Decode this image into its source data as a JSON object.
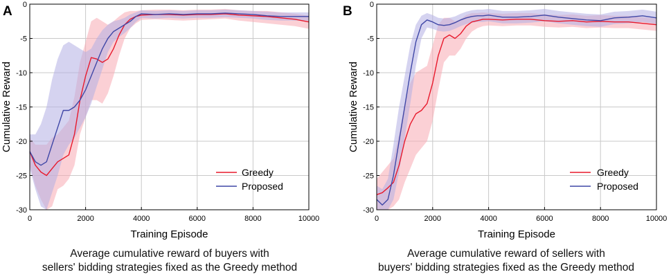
{
  "colors": {
    "greedy": "#e8192c",
    "greedy_band": "#f7a9b2",
    "proposed": "#3f47a6",
    "proposed_band": "#b3aee3",
    "grid": "#c9c9c9"
  },
  "chart_data": [
    {
      "panel": "A",
      "type": "line",
      "xlabel": "Training Episode",
      "ylabel": "Cumulative Reward",
      "xlim": [
        0,
        10000
      ],
      "ylim": [
        -30,
        0
      ],
      "xticks": [
        0,
        2000,
        4000,
        6000,
        8000,
        10000
      ],
      "yticks": [
        -30,
        -25,
        -20,
        -15,
        -10,
        -5,
        0
      ],
      "grid": true,
      "legend_position": "lower-right",
      "caption": [
        "Average cumulative reward of buyers with",
        "sellers' bidding strategies fixed as the Greedy method"
      ],
      "series": [
        {
          "name": "Greedy",
          "x": [
            0,
            200,
            400,
            600,
            800,
            1000,
            1200,
            1400,
            1600,
            1800,
            2000,
            2200,
            2400,
            2600,
            2800,
            3000,
            3200,
            3400,
            3600,
            3800,
            4000,
            4500,
            5000,
            5500,
            6000,
            6500,
            7000,
            7500,
            8000,
            8500,
            9000,
            9500,
            10000
          ],
          "mean": [
            -21.5,
            -23.5,
            -24.5,
            -25.0,
            -24.0,
            -23.0,
            -22.5,
            -22.0,
            -19.0,
            -14.0,
            -10.5,
            -7.8,
            -8.0,
            -8.5,
            -8.0,
            -6.5,
            -4.5,
            -3.0,
            -2.2,
            -1.8,
            -1.6,
            -1.5,
            -1.5,
            -1.6,
            -1.5,
            -1.5,
            -1.4,
            -1.6,
            -1.7,
            -1.8,
            -2.0,
            -2.2,
            -2.6
          ],
          "lower": [
            -23.5,
            -26.5,
            -28.5,
            -30.0,
            -29.5,
            -27.0,
            -26.5,
            -25.5,
            -23.5,
            -19.0,
            -16.5,
            -14.0,
            -14.0,
            -14.5,
            -13.0,
            -10.5,
            -7.5,
            -5.0,
            -3.5,
            -2.8,
            -2.3,
            -2.2,
            -2.3,
            -2.4,
            -2.3,
            -2.2,
            -2.1,
            -2.4,
            -2.6,
            -2.8,
            -3.0,
            -3.2,
            -3.6
          ],
          "upper": [
            -19.5,
            -20.5,
            -20.5,
            -20.5,
            -19.5,
            -19.0,
            -18.0,
            -17.0,
            -13.5,
            -8.5,
            -5.5,
            -2.5,
            -2.0,
            -2.5,
            -3.0,
            -2.5,
            -1.8,
            -1.2,
            -1.0,
            -1.0,
            -0.9,
            -0.8,
            -0.8,
            -0.9,
            -0.8,
            -0.8,
            -0.7,
            -0.9,
            -1.0,
            -1.0,
            -1.2,
            -1.4,
            -1.7
          ]
        },
        {
          "name": "Proposed",
          "x": [
            0,
            200,
            400,
            600,
            800,
            1000,
            1200,
            1400,
            1600,
            1800,
            2000,
            2200,
            2400,
            2600,
            2800,
            3000,
            3200,
            3400,
            3600,
            3800,
            4000,
            4500,
            5000,
            5500,
            6000,
            6500,
            7000,
            7500,
            8000,
            8500,
            9000,
            9500,
            10000
          ],
          "mean": [
            -21.5,
            -23.0,
            -23.5,
            -23.0,
            -20.5,
            -18.0,
            -15.5,
            -15.5,
            -15.0,
            -14.0,
            -12.5,
            -10.5,
            -8.5,
            -6.5,
            -5.0,
            -4.0,
            -3.5,
            -3.0,
            -2.5,
            -1.8,
            -1.4,
            -1.5,
            -1.4,
            -1.5,
            -1.4,
            -1.4,
            -1.3,
            -1.4,
            -1.5,
            -1.7,
            -1.8,
            -1.8,
            -1.8
          ],
          "lower": [
            -24.0,
            -27.0,
            -29.5,
            -30.0,
            -27.5,
            -25.0,
            -22.0,
            -20.5,
            -19.5,
            -18.0,
            -16.5,
            -14.5,
            -12.0,
            -9.5,
            -7.0,
            -5.5,
            -4.8,
            -4.2,
            -3.5,
            -2.6,
            -2.0,
            -2.1,
            -2.0,
            -2.1,
            -2.0,
            -2.0,
            -1.9,
            -2.0,
            -2.1,
            -2.3,
            -2.4,
            -2.4,
            -2.4
          ],
          "upper": [
            -19.0,
            -19.0,
            -17.5,
            -15.0,
            -11.0,
            -8.0,
            -6.0,
            -5.5,
            -6.0,
            -6.5,
            -7.0,
            -6.5,
            -5.0,
            -3.8,
            -3.0,
            -2.5,
            -2.3,
            -2.0,
            -1.5,
            -1.2,
            -0.9,
            -1.0,
            -0.9,
            -1.0,
            -0.9,
            -0.9,
            -0.8,
            -0.9,
            -1.0,
            -1.1,
            -1.2,
            -1.2,
            -1.2
          ]
        }
      ]
    },
    {
      "panel": "B",
      "type": "line",
      "xlabel": "Training Episode",
      "ylabel": "Cumulative Reward",
      "xlim": [
        0,
        10000
      ],
      "ylim": [
        -30,
        0
      ],
      "xticks": [
        0,
        2000,
        4000,
        6000,
        8000,
        10000
      ],
      "yticks": [
        -30,
        -25,
        -20,
        -15,
        -10,
        -5,
        0
      ],
      "grid": true,
      "legend_position": "lower-right",
      "caption": [
        "Average cumulative reward of sellers with",
        "buyers' bidding strategies fixed as the Greedy method"
      ],
      "series": [
        {
          "name": "Greedy",
          "x": [
            0,
            200,
            400,
            600,
            800,
            1000,
            1200,
            1400,
            1600,
            1800,
            2000,
            2200,
            2400,
            2600,
            2800,
            3000,
            3200,
            3400,
            3600,
            3800,
            4000,
            4500,
            5000,
            5500,
            6000,
            6500,
            7000,
            7500,
            8000,
            8500,
            9000,
            9500,
            10000
          ],
          "mean": [
            -27.8,
            -27.5,
            -26.8,
            -26.0,
            -23.5,
            -20.0,
            -17.5,
            -16.0,
            -15.5,
            -14.5,
            -11.5,
            -7.5,
            -5.0,
            -4.5,
            -5.0,
            -4.3,
            -3.2,
            -2.6,
            -2.4,
            -2.2,
            -2.2,
            -2.3,
            -2.2,
            -2.2,
            -2.4,
            -2.5,
            -2.4,
            -2.6,
            -2.5,
            -2.6,
            -2.6,
            -2.8,
            -3.0
          ],
          "lower": [
            -30.0,
            -30.0,
            -30.0,
            -29.5,
            -28.5,
            -26.0,
            -24.0,
            -22.0,
            -21.0,
            -20.0,
            -17.0,
            -12.5,
            -8.5,
            -7.5,
            -7.5,
            -6.5,
            -5.0,
            -4.0,
            -3.5,
            -3.2,
            -3.1,
            -3.2,
            -3.1,
            -3.1,
            -3.3,
            -3.4,
            -3.3,
            -3.5,
            -3.4,
            -3.5,
            -3.5,
            -3.7,
            -3.9
          ],
          "upper": [
            -25.5,
            -24.5,
            -23.5,
            -22.5,
            -19.0,
            -14.5,
            -11.5,
            -10.0,
            -9.5,
            -9.0,
            -6.0,
            -3.0,
            -2.0,
            -2.0,
            -2.5,
            -2.2,
            -1.6,
            -1.3,
            -1.3,
            -1.2,
            -1.3,
            -1.4,
            -1.3,
            -1.3,
            -1.5,
            -1.6,
            -1.5,
            -1.7,
            -1.6,
            -1.7,
            -1.7,
            -1.9,
            -2.1
          ]
        },
        {
          "name": "Proposed",
          "x": [
            0,
            200,
            400,
            600,
            800,
            1000,
            1200,
            1400,
            1600,
            1800,
            2000,
            2200,
            2400,
            2600,
            2800,
            3000,
            3200,
            3400,
            3600,
            3800,
            4000,
            4500,
            5000,
            5500,
            6000,
            6500,
            7000,
            7500,
            8000,
            8500,
            9000,
            9500,
            10000
          ],
          "mean": [
            -28.5,
            -29.3,
            -28.5,
            -25.0,
            -20.0,
            -15.0,
            -10.0,
            -5.5,
            -3.0,
            -2.3,
            -2.6,
            -3.0,
            -3.1,
            -3.0,
            -2.7,
            -2.3,
            -2.0,
            -1.8,
            -1.7,
            -1.7,
            -1.6,
            -1.9,
            -1.9,
            -1.8,
            -1.6,
            -1.9,
            -2.1,
            -2.3,
            -2.4,
            -2.0,
            -1.9,
            -1.7,
            -2.0
          ],
          "lower": [
            -30.0,
            -30.0,
            -30.0,
            -28.5,
            -24.5,
            -19.5,
            -14.5,
            -9.0,
            -5.0,
            -3.4,
            -3.6,
            -3.9,
            -4.0,
            -3.9,
            -3.6,
            -3.2,
            -2.9,
            -2.7,
            -2.6,
            -2.6,
            -2.5,
            -2.8,
            -2.8,
            -2.7,
            -2.5,
            -2.8,
            -3.0,
            -3.2,
            -3.3,
            -2.9,
            -2.8,
            -2.6,
            -2.9
          ],
          "upper": [
            -26.5,
            -27.0,
            -25.5,
            -20.5,
            -15.0,
            -10.5,
            -6.0,
            -3.0,
            -1.7,
            -1.3,
            -1.6,
            -2.0,
            -2.1,
            -2.0,
            -1.8,
            -1.4,
            -1.1,
            -0.9,
            -0.8,
            -0.8,
            -0.7,
            -1.0,
            -1.0,
            -0.9,
            -0.7,
            -1.0,
            -1.2,
            -1.4,
            -1.5,
            -1.1,
            -1.0,
            -0.8,
            -1.1
          ]
        }
      ]
    }
  ]
}
